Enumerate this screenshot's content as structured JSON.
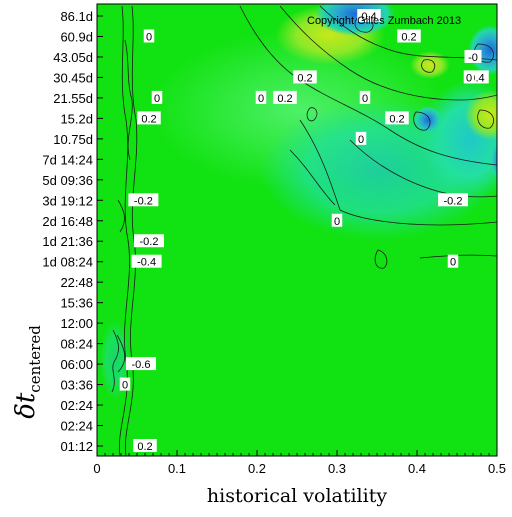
{
  "chart_data": {
    "type": "heatmap",
    "title": "",
    "copyright": "Copyright Gilles Zumbach 2013",
    "xlabel": "historical volatility",
    "ylabel": {
      "main": "δt",
      "subscript": "centered"
    },
    "xlim": [
      0,
      0.5
    ],
    "x_ticks": [
      "0",
      "0.1",
      "0.2",
      "0.3",
      "0.4",
      "0.5"
    ],
    "y_ticks": [
      "01:12",
      "02:24",
      "02:24",
      "03:36",
      "06:00",
      "08:24",
      "12:00",
      "15:36",
      "22:48",
      "1d 08:24",
      "1d 21:36",
      "2d 16:48",
      "3d 19:12",
      "5d 09:36",
      "7d 14:24",
      "10.75d",
      "15.2d",
      "21.55d",
      "30.45d",
      "43.05d",
      "60.9d",
      "86.1d"
    ],
    "colors": {
      "background_field": "#11e211",
      "low_value": "#1a6bd8",
      "mid_value": "#21e0a0",
      "high_value": "#c8e81a"
    },
    "contour_labels": [
      {
        "text": "0",
        "x": 0.065,
        "y": "60.9d"
      },
      {
        "text": "0",
        "x": 0.075,
        "y": "21.55d"
      },
      {
        "text": "0.2",
        "x": 0.065,
        "y": "15.2d"
      },
      {
        "text": "-0.2",
        "x": 0.058,
        "y": "3d 19:12"
      },
      {
        "text": "-0.2",
        "x": 0.065,
        "y": "1d 21:36"
      },
      {
        "text": "-0.4",
        "x": 0.062,
        "y": "1d 08:24"
      },
      {
        "text": "-0.6",
        "x": 0.055,
        "y": "06:00"
      },
      {
        "text": "0",
        "x": 0.035,
        "y": "03:36"
      },
      {
        "text": "0.2",
        "x": 0.06,
        "y": "01:12"
      },
      {
        "text": "0.2",
        "x": 0.235,
        "y": "21.55d"
      },
      {
        "text": "0.2",
        "x": 0.26,
        "y": "30.45d"
      },
      {
        "text": "0",
        "x": 0.205,
        "y": "21.55d"
      },
      {
        "text": "0.4",
        "x": 0.34,
        "y": "86.1d"
      },
      {
        "text": "0.2",
        "x": 0.39,
        "y": "60.9d"
      },
      {
        "text": "-0",
        "x": 0.47,
        "y": "43.05d"
      },
      {
        "text": "0.4",
        "x": 0.475,
        "y": "30.45d"
      },
      {
        "text": "0",
        "x": 0.465,
        "y": "30.45d"
      },
      {
        "text": "0",
        "x": 0.335,
        "y": "21.55d"
      },
      {
        "text": "0.2",
        "x": 0.375,
        "y": "15.2d"
      },
      {
        "text": "0",
        "x": 0.33,
        "y": "10.75d"
      },
      {
        "text": "0",
        "x": 0.3,
        "y": "2d 16:48"
      },
      {
        "text": "-0.2",
        "x": 0.445,
        "y": "3d 19:12"
      },
      {
        "text": "0",
        "x": 0.445,
        "y": "1d 08:24"
      }
    ]
  }
}
